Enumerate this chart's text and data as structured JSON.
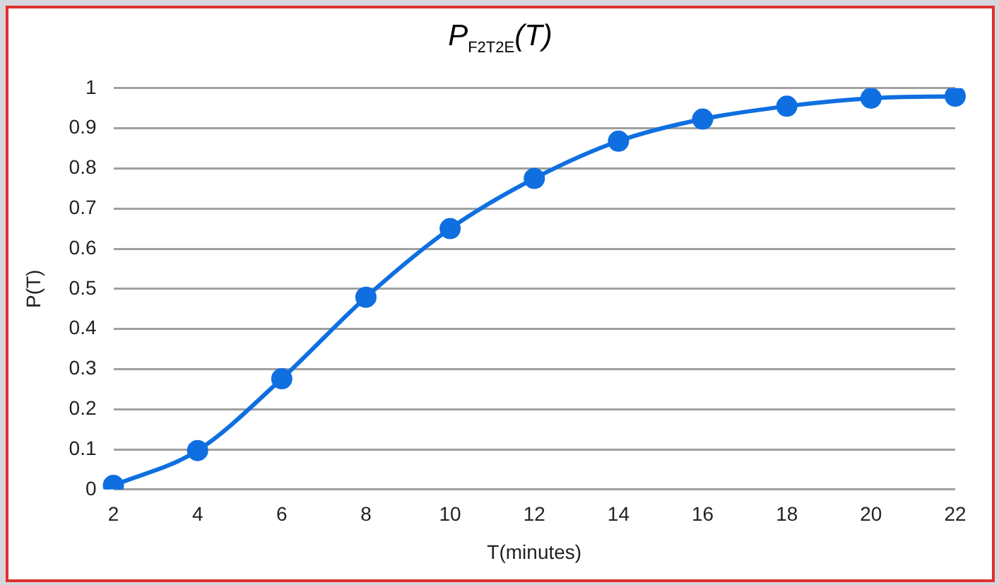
{
  "chart_data": {
    "type": "line",
    "title": "P$_{F2T2E}$(T)",
    "xlabel": "T(minutes)",
    "ylabel": "P(T)",
    "categories": [
      "2",
      "4",
      "6",
      "8",
      "10",
      "12",
      "14",
      "16",
      "18",
      "20",
      "22"
    ],
    "series": [
      {
        "color": "#0f6fe0",
        "values": [
          0.01,
          0.097,
          0.276,
          0.479,
          0.65,
          0.775,
          0.868,
          0.923,
          0.955,
          0.975,
          0.98
        ]
      }
    ],
    "ylim": [
      0,
      1
    ],
    "yticks": [
      0,
      {
        "value": 0.1,
        "label": "0.1"
      },
      {
        "value": 0.2,
        "label": "0.2"
      },
      {
        "value": 0.3,
        "label": "0.3"
      },
      {
        "value": 0.4,
        "label": "0.4"
      },
      {
        "value": 0.5,
        "label": "0.5"
      },
      {
        "value": 0.6,
        "label": "0.6"
      },
      {
        "value": 0.7,
        "label": "0.7"
      },
      {
        "value": 0.8,
        "label": "0.8"
      },
      {
        "value": 0.9,
        "label": "0.9"
      },
      1
    ],
    "grid": "y",
    "legend": false,
    "marker": "circle",
    "line_style": "solid"
  }
}
